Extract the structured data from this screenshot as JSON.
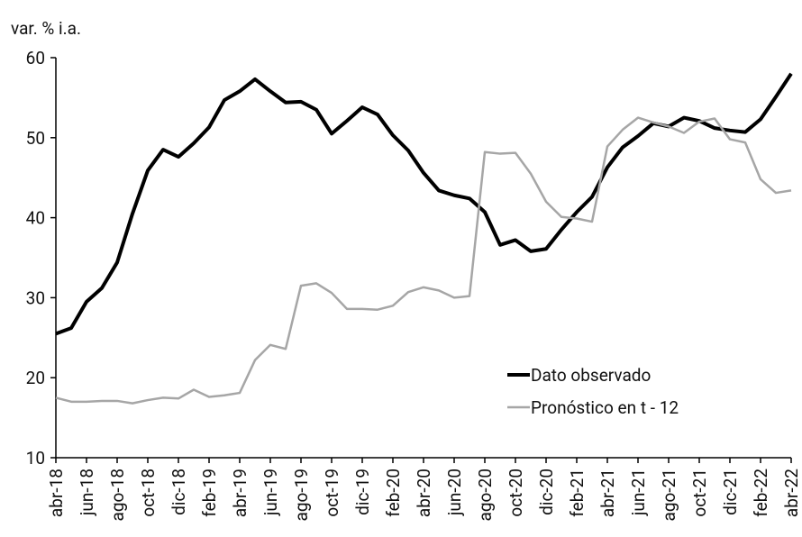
{
  "chart_data": {
    "type": "line",
    "y_label": "var. % i.a.",
    "categories": [
      "abr-18",
      null,
      "jun-18",
      null,
      "ago-18",
      null,
      "oct-18",
      null,
      "dic-18",
      null,
      "feb-19",
      null,
      "abr-19",
      null,
      "jun-19",
      null,
      "ago-19",
      null,
      "oct-19",
      null,
      "dic-19",
      null,
      "feb-20",
      null,
      "abr-20",
      null,
      "jun-20",
      null,
      "ago-20",
      null,
      "oct-20",
      null,
      "dic-20",
      null,
      "feb-21",
      null,
      "abr-21",
      null,
      "jun-21",
      null,
      "ago-21",
      null,
      "oct-21",
      null,
      "dic-21",
      null,
      "feb-22",
      null,
      "abr-22"
    ],
    "series": [
      {
        "name": "Dato observado",
        "color": "#000000",
        "width": 4,
        "values": [
          25.5,
          26.2,
          29.5,
          31.2,
          34.4,
          40.5,
          45.9,
          48.5,
          47.6,
          49.3,
          51.3,
          54.7,
          55.8,
          57.3,
          55.8,
          54.4,
          54.5,
          53.5,
          50.5,
          52.1,
          53.8,
          52.9,
          50.3,
          48.4,
          45.6,
          43.4,
          42.8,
          42.4,
          40.7,
          36.6,
          37.2,
          35.8,
          36.1,
          38.5,
          40.7,
          42.6,
          46.3,
          48.8,
          50.2,
          51.8,
          51.4,
          52.5,
          52.1,
          51.2,
          50.9,
          50.7,
          52.3,
          55.1,
          58.0
        ]
      },
      {
        "name": "Pronóstico en t - 12",
        "color": "#a6a6a6",
        "width": 2.5,
        "values": [
          17.5,
          17.0,
          17.0,
          17.1,
          17.1,
          16.8,
          17.2,
          17.5,
          17.4,
          18.5,
          17.6,
          17.8,
          18.1,
          22.2,
          24.1,
          23.6,
          31.5,
          31.8,
          30.6,
          28.6,
          28.6,
          28.5,
          29.0,
          30.7,
          31.3,
          30.9,
          30.0,
          30.2,
          48.2,
          48.0,
          48.1,
          45.5,
          42.0,
          40.1,
          39.9,
          39.5,
          48.9,
          51.0,
          52.5,
          51.9,
          51.4,
          50.6,
          52.0,
          52.4,
          49.8,
          49.4,
          44.8,
          43.1,
          43.4
        ]
      }
    ],
    "ylim": [
      10,
      60
    ],
    "yticks": [
      10,
      20,
      30,
      40,
      50,
      60
    ]
  }
}
